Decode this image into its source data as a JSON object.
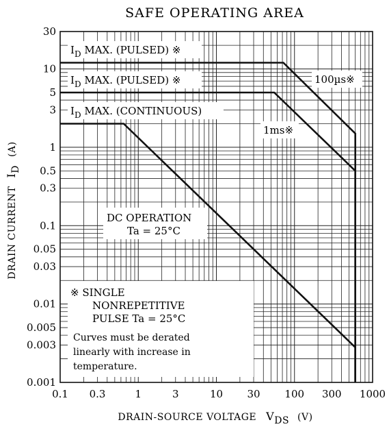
{
  "chart_data": {
    "type": "line",
    "title": "SAFE OPERATING AREA",
    "xlabel": {
      "main": "DRAIN-SOURCE VOLTAGE",
      "symbol": "V",
      "subscript": "DS",
      "unit": "(V)"
    },
    "ylabel": {
      "main": "DRAIN CURRENT",
      "symbol": "I",
      "subscript": "D",
      "unit": "(A)"
    },
    "x_scale": "log",
    "y_scale": "log",
    "xlim": [
      0.1,
      1000
    ],
    "ylim": [
      0.001,
      30
    ],
    "x_ticks": [
      {
        "value": 0.1,
        "label": "0.1"
      },
      {
        "value": 0.3,
        "label": "0.3"
      },
      {
        "value": 1,
        "label": "1"
      },
      {
        "value": 3,
        "label": "3"
      },
      {
        "value": 10,
        "label": "10"
      },
      {
        "value": 30,
        "label": "30"
      },
      {
        "value": 100,
        "label": "100"
      },
      {
        "value": 300,
        "label": "300"
      },
      {
        "value": 1000,
        "label": "1000"
      }
    ],
    "y_ticks": [
      {
        "value": 0.001,
        "label": "0.001"
      },
      {
        "value": 0.003,
        "label": "0.003"
      },
      {
        "value": 0.005,
        "label": "0.005"
      },
      {
        "value": 0.01,
        "label": "0.01"
      },
      {
        "value": 0.03,
        "label": "0.03"
      },
      {
        "value": 0.05,
        "label": "0.05"
      },
      {
        "value": 0.1,
        "label": "0.1"
      },
      {
        "value": 0.3,
        "label": "0.3"
      },
      {
        "value": 0.5,
        "label": "0.5"
      },
      {
        "value": 1,
        "label": "1"
      },
      {
        "value": 3,
        "label": "3"
      },
      {
        "value": 5,
        "label": "5"
      },
      {
        "value": 10,
        "label": "10"
      },
      {
        "value": 30,
        "label": "30"
      }
    ],
    "grid": true,
    "series": [
      {
        "name": "100µs",
        "points": [
          [
            0.1,
            12
          ],
          [
            72,
            12
          ],
          [
            600,
            1.5
          ],
          [
            600,
            0.001
          ]
        ]
      },
      {
        "name": "1ms",
        "points": [
          [
            0.1,
            5
          ],
          [
            55,
            5
          ],
          [
            600,
            0.5
          ],
          [
            600,
            0.001
          ]
        ]
      },
      {
        "name": "DC",
        "points": [
          [
            0.1,
            2
          ],
          [
            0.65,
            2
          ],
          [
            600,
            0.0028
          ],
          [
            600,
            0.001
          ]
        ]
      }
    ],
    "annotations": {
      "id_max_pulsed_1": {
        "main": "I",
        "sub": "D",
        "rest": " MAX. (PULSED) ※"
      },
      "id_max_pulsed_2": {
        "main": "I",
        "sub": "D",
        "rest": " MAX. (PULSED) ※"
      },
      "id_max_continuous": {
        "main": "I",
        "sub": "D",
        "rest": " MAX. (CONTINUOUS)"
      },
      "label_100us": "100µs※",
      "label_1ms": "1ms※",
      "dc_operation": [
        "DC OPERATION",
        "Ta = 25°C"
      ],
      "single_pulse_note": [
        "※  SINGLE",
        "NONREPETITIVE",
        "PULSE Ta = 25°C"
      ],
      "derating_note": [
        "Curves must be derated",
        "linearly with increase in",
        "temperature."
      ]
    }
  }
}
